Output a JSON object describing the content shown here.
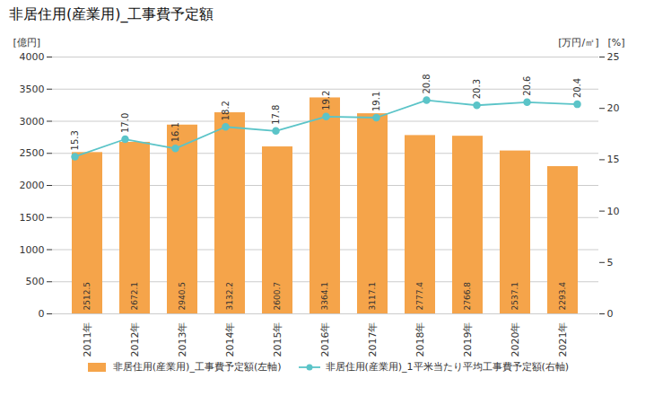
{
  "chart_data": {
    "type": "bar",
    "title": "非居住用(産業用)_工事費予定額",
    "ylabel": "[億円]",
    "y2label": "[万円/㎡]",
    "annotations": [
      "[%]"
    ],
    "categories": [
      "2011年",
      "2012年",
      "2013年",
      "2014年",
      "2015年",
      "2016年",
      "2017年",
      "2018年",
      "2019年",
      "2020年",
      "2021年"
    ],
    "series": [
      {
        "name": "非居住用(産業用)_工事費予定額(左軸)",
        "type": "bar",
        "color": "#f5a44a",
        "values": [
          2512.5,
          2672.1,
          2940.5,
          3132.2,
          2600.7,
          3364.1,
          3117.1,
          2777.4,
          2766.8,
          2537.1,
          2293.4
        ]
      },
      {
        "name": "非居住用(産業用)_1平米当たり平均工事費予定額(右軸)",
        "type": "line",
        "axis": "y2",
        "color": "#5bc4c8",
        "marker": "o",
        "values": [
          15.3,
          17.0,
          16.1,
          18.2,
          17.8,
          19.2,
          19.1,
          20.8,
          20.3,
          20.6,
          20.4
        ],
        "value_labels": [
          "15.3",
          "17.0",
          "16.1",
          "18.2",
          "17.8",
          "19.2",
          "19.1",
          "20.8",
          "20.3",
          "20.6",
          "20.4"
        ]
      }
    ],
    "ylim": [
      0,
      4000
    ],
    "yticks": [
      0,
      500,
      1000,
      1500,
      2000,
      2500,
      3000,
      3500,
      4000
    ],
    "y2lim": [
      0,
      25
    ],
    "y2ticks": [
      0,
      5,
      10,
      15,
      20,
      25
    ],
    "grid": true,
    "legend": "bottom",
    "data_labels": true
  }
}
